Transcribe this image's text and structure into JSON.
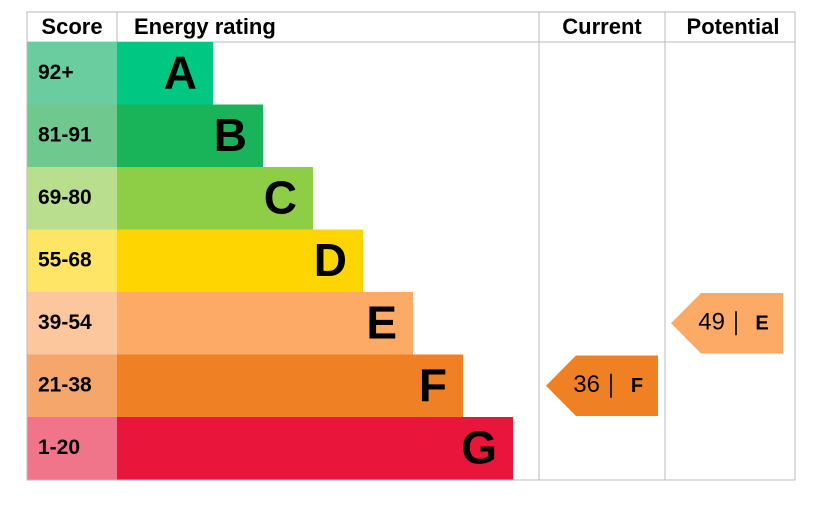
{
  "header": {
    "score": "Score",
    "rating": "Energy rating",
    "current": "Current",
    "potential": "Potential"
  },
  "bands": [
    {
      "score": "92+",
      "letter": "A",
      "color": "#00c781",
      "score_color": "#6acda0"
    },
    {
      "score": "81-91",
      "letter": "B",
      "color": "#19b459",
      "score_color": "#6fc98f"
    },
    {
      "score": "69-80",
      "letter": "C",
      "color": "#8dce46",
      "score_color": "#b9df8e"
    },
    {
      "score": "55-68",
      "letter": "D",
      "color": "#ffd500",
      "score_color": "#ffe566"
    },
    {
      "score": "39-54",
      "letter": "E",
      "color": "#fcaa65",
      "score_color": "#fdc79d"
    },
    {
      "score": "21-38",
      "letter": "F",
      "color": "#ef8023",
      "score_color": "#f4a66b"
    },
    {
      "score": "1-20",
      "letter": "G",
      "color": "#e9153b",
      "score_color": "#f0758a"
    }
  ],
  "current": {
    "score": 36,
    "rating": "F"
  },
  "potential": {
    "score": 49,
    "rating": "E"
  }
}
